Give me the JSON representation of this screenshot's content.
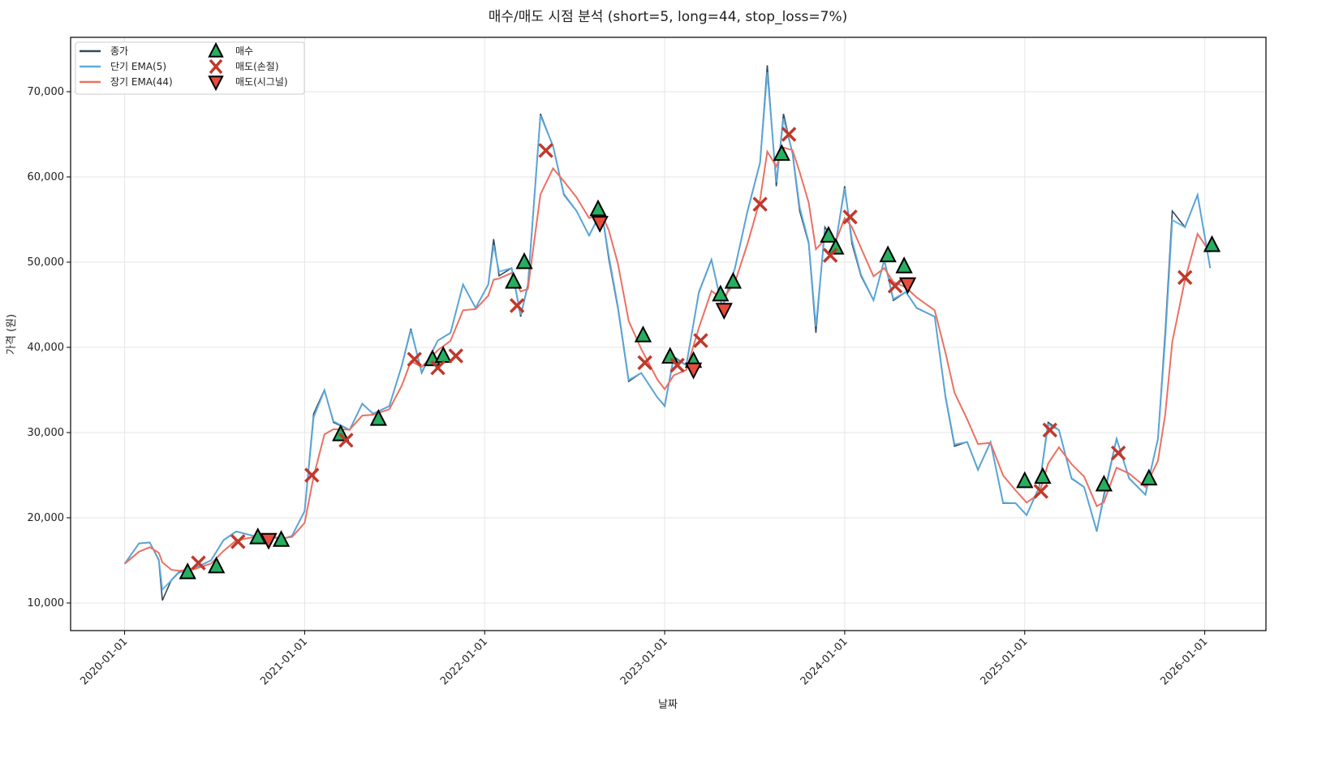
{
  "chart_data": {
    "type": "line",
    "title": "매수/매도 시점 분석 (short=5, long=44, stop_loss=7%)",
    "xlabel": "날짜",
    "ylabel": "가격 (원)",
    "x_unit": "years since 2020-01-01",
    "xlim": [
      -0.3,
      6.34
    ],
    "ylim": [
      6760,
      76380
    ],
    "grid": true,
    "legend_position": "top-left",
    "x_ticks": [
      {
        "value": 0,
        "label": "2020-01-01"
      },
      {
        "value": 1,
        "label": "2021-01-01"
      },
      {
        "value": 2,
        "label": "2022-01-01"
      },
      {
        "value": 3,
        "label": "2023-01-01"
      },
      {
        "value": 4,
        "label": "2024-01-01"
      },
      {
        "value": 5,
        "label": "2025-01-01"
      },
      {
        "value": 6,
        "label": "2026-01-01"
      }
    ],
    "y_ticks": [
      {
        "value": 10000,
        "label": "10,000"
      },
      {
        "value": 20000,
        "label": "20,000"
      },
      {
        "value": 30000,
        "label": "30,000"
      },
      {
        "value": 40000,
        "label": "40,000"
      },
      {
        "value": 50000,
        "label": "50,000"
      },
      {
        "value": 60000,
        "label": "60,000"
      },
      {
        "value": 70000,
        "label": "70,000"
      }
    ],
    "legend": [
      {
        "key": "close",
        "label": "종가",
        "color": "#34495e"
      },
      {
        "key": "ema_short",
        "label": "단기 EMA(5)",
        "color": "#5dade2"
      },
      {
        "key": "ema_long",
        "label": "장기 EMA(44)",
        "color": "#ec7063"
      },
      {
        "key": "buy",
        "label": "매수",
        "color": "#27ae60"
      },
      {
        "key": "sell_stop",
        "label": "매도(손절)",
        "color": "#c0392b"
      },
      {
        "key": "sell_signal",
        "label": "매도(시그널)",
        "color": "#e74c3c"
      }
    ],
    "close": {
      "x": [
        0.0,
        0.08,
        0.14,
        0.19,
        0.21,
        0.26,
        0.3,
        0.39,
        0.48,
        0.55,
        0.62,
        0.71,
        0.8,
        0.87,
        0.93,
        1.0,
        1.05,
        1.11,
        1.16,
        1.25,
        1.32,
        1.38,
        1.47,
        1.54,
        1.59,
        1.65,
        1.74,
        1.81,
        1.88,
        1.95,
        2.02,
        2.05,
        2.08,
        2.15,
        2.2,
        2.24,
        2.31,
        2.38,
        2.44,
        2.51,
        2.58,
        2.65,
        2.69,
        2.74,
        2.8,
        2.87,
        2.96,
        3.0,
        3.05,
        3.12,
        3.19,
        3.26,
        3.32,
        3.39,
        3.46,
        3.53,
        3.57,
        3.62,
        3.66,
        3.71,
        3.75,
        3.8,
        3.84,
        3.89,
        3.95,
        4.0,
        4.04,
        4.09,
        4.16,
        4.22,
        4.27,
        4.34,
        4.4,
        4.5,
        4.56,
        4.61,
        4.68,
        4.74,
        4.81,
        4.88,
        4.95,
        5.01,
        5.08,
        5.13,
        5.19,
        5.26,
        5.33,
        5.4,
        5.44,
        5.51,
        5.58,
        5.67,
        5.74,
        5.78,
        5.82,
        5.89,
        5.96,
        6.03
      ],
      "y": [
        14600,
        17000,
        17100,
        15000,
        10300,
        12700,
        13600,
        14100,
        15000,
        17400,
        18400,
        17900,
        17900,
        17400,
        17900,
        20800,
        32200,
        35000,
        31200,
        30300,
        33400,
        32200,
        33100,
        37900,
        42200,
        37000,
        40800,
        41700,
        47400,
        44600,
        47400,
        52700,
        48400,
        49300,
        43600,
        47400,
        67400,
        63600,
        57900,
        56000,
        53100,
        56000,
        50300,
        44600,
        36000,
        37000,
        34100,
        33100,
        38900,
        37900,
        46500,
        50300,
        44600,
        49300,
        56000,
        61700,
        73100,
        58900,
        67400,
        62700,
        56000,
        52200,
        41700,
        54100,
        52200,
        58900,
        52200,
        48400,
        45500,
        50300,
        45500,
        46500,
        44600,
        43600,
        34100,
        28400,
        28900,
        25600,
        28900,
        21700,
        21700,
        20300,
        23600,
        31200,
        30300,
        24600,
        23600,
        18400,
        22700,
        29300,
        24600,
        22700,
        29300,
        41700,
        56000,
        54100,
        57900,
        49300
      ]
    },
    "buy": {
      "x": [
        0.35,
        0.51,
        0.74,
        0.87,
        1.2,
        1.41,
        1.71,
        1.77,
        2.16,
        2.22,
        2.63,
        2.88,
        3.03,
        3.16,
        3.31,
        3.38,
        3.65,
        3.91,
        3.95,
        4.24,
        4.33,
        5.0,
        5.1,
        5.44,
        5.69,
        6.04
      ],
      "y": [
        13600,
        14300,
        17700,
        17400,
        29800,
        31600,
        38600,
        39000,
        47700,
        50000,
        56200,
        41400,
        38900,
        38400,
        46200,
        47700,
        62700,
        53100,
        51700,
        50800,
        49500,
        24300,
        24800,
        23900,
        24600,
        52000
      ]
    },
    "sell_stop": {
      "x": [
        0.41,
        0.63,
        1.04,
        1.23,
        1.61,
        1.74,
        1.84,
        2.18,
        2.34,
        2.89,
        3.07,
        3.2,
        3.53,
        3.69,
        3.92,
        4.03,
        4.28,
        5.09,
        5.14,
        5.52,
        5.89
      ],
      "y": [
        14700,
        17200,
        25000,
        29100,
        38600,
        37600,
        39000,
        44900,
        63100,
        38200,
        37900,
        40800,
        56800,
        65000,
        50800,
        55300,
        47200,
        23100,
        30300,
        27600,
        48200
      ]
    },
    "sell_signal": {
      "x": [
        0.8,
        2.64,
        3.16,
        3.33,
        4.35
      ],
      "y": [
        17400,
        54600,
        37400,
        44400,
        47400
      ]
    }
  }
}
